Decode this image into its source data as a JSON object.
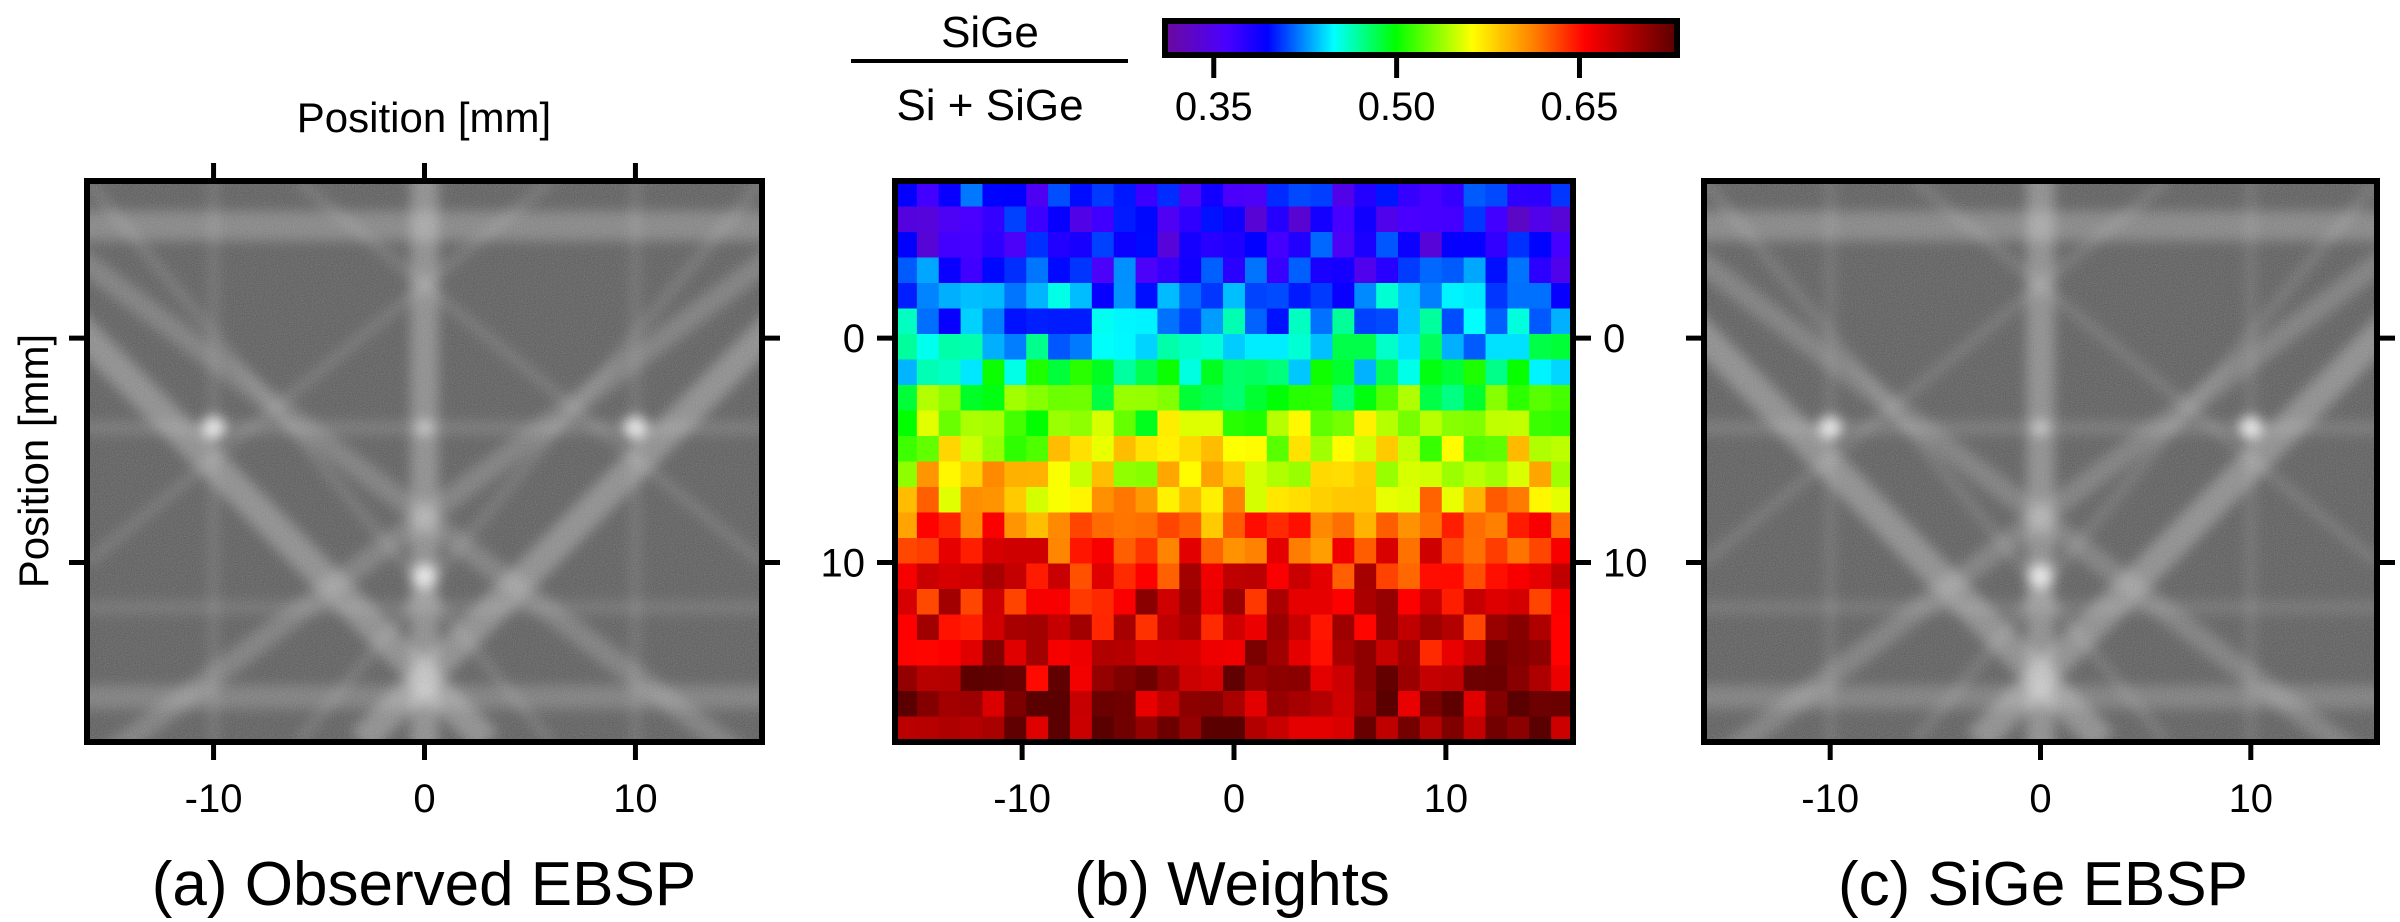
{
  "figure": {
    "top_axis_title": "Position [mm]",
    "left_axis_title": "Position [mm]",
    "captions": [
      "(a) Observed EBSP",
      "(b) Weights",
      "(c) SiGe EBSP"
    ],
    "x_tick_labels": [
      "-10",
      "0",
      "10"
    ],
    "y_tick_labels": [
      "0",
      "10"
    ]
  },
  "colorbar": {
    "label_numerator": "SiGe",
    "label_denominator": "Si + SiGe",
    "tick_values": [
      0.35,
      0.5,
      0.65
    ],
    "tick_labels": [
      "0.35",
      "0.50",
      "0.65"
    ],
    "range": [
      0.31,
      0.73
    ],
    "colormap": [
      "#6a0a9a",
      "#2a00ff",
      "#0000ff",
      "#00ffff",
      "#00ff00",
      "#ffff00",
      "#ff8000",
      "#ff0000",
      "#5a0000"
    ]
  },
  "chart_data": {
    "type": "heatmap",
    "title": "(b) Weights",
    "xlabel": "Position [mm]",
    "ylabel": "Position [mm]",
    "xlim": [
      -16,
      16
    ],
    "ylim": [
      -7,
      18
    ],
    "x_ticks": [
      -10,
      0,
      10
    ],
    "y_ticks": [
      0,
      10
    ],
    "value_range": [
      0.31,
      0.73
    ],
    "row_mean_values": [
      0.38,
      0.37,
      0.38,
      0.39,
      0.42,
      0.43,
      0.45,
      0.47,
      0.51,
      0.53,
      0.55,
      0.57,
      0.59,
      0.62,
      0.64,
      0.66,
      0.67,
      0.67,
      0.68,
      0.69,
      0.7,
      0.7
    ]
  }
}
